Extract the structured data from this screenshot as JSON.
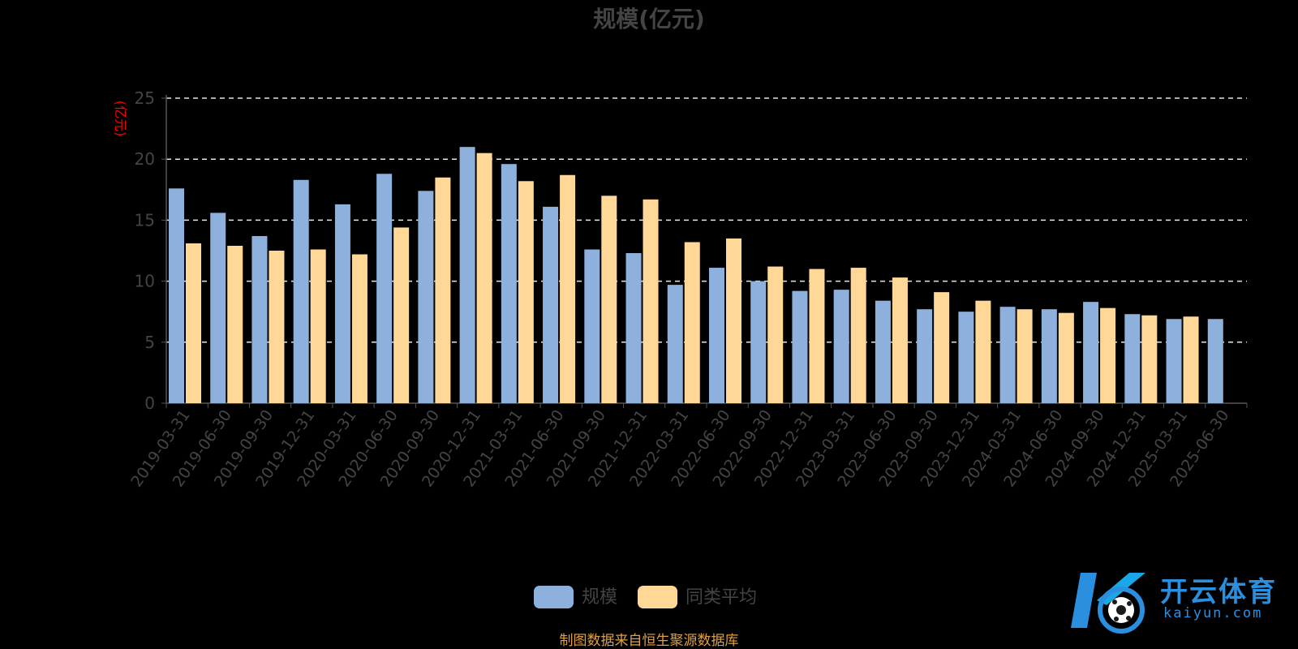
{
  "colors": {
    "background": "#000000",
    "series1": "#8eb0dc",
    "series2": "#ffd898",
    "axis": "#555555",
    "text": "#444444",
    "grid": "#ffffff",
    "ylabel": "#ff0000",
    "footer": "#e0a040"
  },
  "chart_data": {
    "type": "bar",
    "title": "规模(亿元)",
    "ylabel": "(亿元)",
    "xlabel": "",
    "ylim": [
      0,
      25
    ],
    "yticks": [
      0,
      5,
      10,
      15,
      20,
      25
    ],
    "grid": true,
    "legend_position": "bottom-center",
    "categories": [
      "2019-03-31",
      "2019-06-30",
      "2019-09-30",
      "2019-12-31",
      "2020-03-31",
      "2020-06-30",
      "2020-09-30",
      "2020-12-31",
      "2021-03-31",
      "2021-06-30",
      "2021-09-30",
      "2021-12-31",
      "2022-03-31",
      "2022-06-30",
      "2022-09-30",
      "2022-12-31",
      "2023-03-31",
      "2023-06-30",
      "2023-09-30",
      "2023-12-31",
      "2024-03-31",
      "2024-06-30",
      "2024-09-30",
      "2024-12-31",
      "2025-03-31",
      "2025-06-30"
    ],
    "series": [
      {
        "name": "规模",
        "values": [
          17.6,
          15.6,
          13.7,
          18.3,
          16.3,
          18.8,
          17.4,
          21.0,
          19.6,
          16.1,
          12.6,
          12.3,
          9.7,
          11.1,
          10.0,
          9.2,
          9.3,
          8.4,
          7.7,
          7.5,
          7.9,
          7.7,
          8.3,
          7.3,
          6.9,
          6.9
        ]
      },
      {
        "name": "同类平均",
        "values": [
          13.1,
          12.9,
          12.5,
          12.6,
          12.2,
          14.4,
          18.5,
          20.5,
          18.2,
          18.7,
          17.0,
          16.7,
          13.2,
          13.5,
          11.2,
          11.0,
          11.1,
          10.3,
          9.1,
          8.4,
          7.7,
          7.4,
          7.8,
          7.2,
          7.1,
          null
        ]
      }
    ]
  },
  "footer": {
    "source": "制图数据来自恒生聚源数据库"
  },
  "watermark": {
    "name": "开云体育",
    "site": "kaiyun.com"
  }
}
